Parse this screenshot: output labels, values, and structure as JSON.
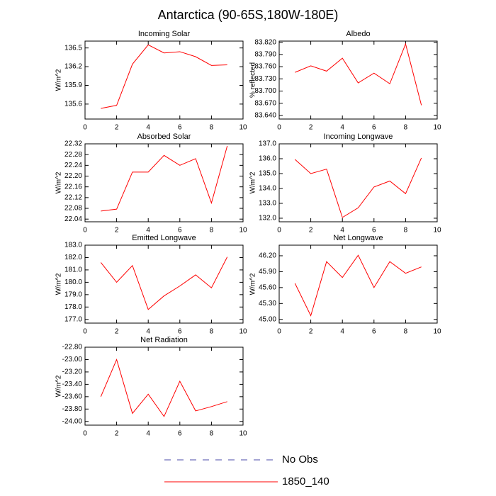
{
  "title": "Antarctica (90-65S,180W-180E)",
  "legend": [
    {
      "name": "No Obs",
      "color": "#4a4aa8",
      "dashed": true
    },
    {
      "name": "1850_140",
      "color": "#ff0000"
    }
  ],
  "chart_data": [
    {
      "type": "line",
      "title": "Incoming Solar",
      "ylabel": "W/m^2",
      "color": "#ff0000",
      "x": [
        1,
        2,
        3,
        4,
        5,
        6,
        7,
        8,
        9
      ],
      "values": [
        135.53,
        135.58,
        136.24,
        136.55,
        136.42,
        136.44,
        136.36,
        136.22,
        136.23
      ],
      "xlim": [
        0,
        10
      ],
      "xticks": [
        0,
        2,
        4,
        6,
        8,
        10
      ],
      "ylim": [
        135.36,
        136.61
      ],
      "yticks": [
        135.6,
        135.9,
        136.2,
        136.5
      ]
    },
    {
      "type": "line",
      "title": "Albedo",
      "ylabel": "% reflected",
      "color": "#ff0000",
      "x": [
        1,
        2,
        3,
        4,
        5,
        6,
        7,
        8,
        9
      ],
      "values": [
        83.746,
        83.762,
        83.749,
        83.781,
        83.72,
        83.744,
        83.718,
        83.816,
        83.665
      ],
      "xlim": [
        0,
        10
      ],
      "xticks": [
        0,
        2,
        4,
        6,
        8,
        10
      ],
      "ylim": [
        83.631,
        83.823
      ],
      "yticks": [
        {
          "value": 83.64,
          "label": "83.640"
        },
        {
          "value": 83.67,
          "label": "83.670"
        },
        {
          "value": 83.7,
          "label": "83.700"
        },
        {
          "value": 83.73,
          "label": "83.730"
        },
        {
          "value": 83.76,
          "label": "83.760"
        },
        {
          "value": 83.79,
          "label": "83.790"
        },
        {
          "value": 83.82,
          "label": "83.820"
        }
      ]
    },
    {
      "type": "line",
      "title": "Absorbed Solar",
      "ylabel": "W/m^2",
      "color": "#ff0000",
      "x": [
        1,
        2,
        3,
        4,
        5,
        6,
        7,
        8,
        9
      ],
      "values": [
        22.07,
        22.077,
        22.215,
        22.215,
        22.277,
        22.24,
        22.265,
        22.1,
        22.312
      ],
      "xlim": [
        0,
        10
      ],
      "xticks": [
        0,
        2,
        4,
        6,
        8,
        10
      ],
      "ylim": [
        22.03,
        22.32
      ],
      "yticks": [
        22.04,
        22.08,
        22.12,
        22.16,
        {
          "value": 22.2,
          "label": "22.20"
        },
        22.24,
        22.28,
        22.32
      ]
    },
    {
      "type": "line",
      "title": "Incoming Longwave",
      "ylabel": "W/m^2",
      "color": "#ff0000",
      "x": [
        1,
        2,
        3,
        4,
        5,
        6,
        7,
        8,
        9
      ],
      "values": [
        135.95,
        135.0,
        135.3,
        132.05,
        132.7,
        134.1,
        134.5,
        133.65,
        136.05
      ],
      "xlim": [
        0,
        10
      ],
      "xticks": [
        0,
        2,
        4,
        6,
        8,
        10
      ],
      "ylim": [
        131.76,
        137.0
      ],
      "yticks": [
        {
          "value": 132,
          "label": "132.0"
        },
        {
          "value": 133,
          "label": "133.0"
        },
        {
          "value": 134,
          "label": "134.0"
        },
        {
          "value": 135,
          "label": "135.0"
        },
        {
          "value": 136,
          "label": "136.0"
        },
        {
          "value": 137,
          "label": "137.0"
        }
      ]
    },
    {
      "type": "line",
      "title": "Emitted Longwave",
      "ylabel": "W/m^2",
      "color": "#ff0000",
      "x": [
        1,
        2,
        3,
        4,
        5,
        6,
        7,
        8,
        9
      ],
      "values": [
        181.6,
        180.0,
        181.35,
        177.8,
        178.9,
        179.7,
        180.6,
        179.55,
        182.05
      ],
      "xlim": [
        0,
        10
      ],
      "xticks": [
        0,
        2,
        4,
        6,
        8,
        10
      ],
      "ylim": [
        176.7,
        183.0
      ],
      "yticks": [
        {
          "value": 177,
          "label": "177.0"
        },
        {
          "value": 178,
          "label": "178.0"
        },
        {
          "value": 179,
          "label": "179.0"
        },
        {
          "value": 180,
          "label": "180.0"
        },
        {
          "value": 181,
          "label": "181.0"
        },
        {
          "value": 182,
          "label": "182.0"
        },
        {
          "value": 183,
          "label": "183.0"
        }
      ]
    },
    {
      "type": "line",
      "title": "Net Longwave",
      "ylabel": "W/m^2",
      "color": "#ff0000",
      "x": [
        1,
        2,
        3,
        4,
        5,
        6,
        7,
        8,
        9
      ],
      "values": [
        45.68,
        45.07,
        46.09,
        45.79,
        46.21,
        45.6,
        46.09,
        45.87,
        45.99
      ],
      "xlim": [
        0,
        10
      ],
      "xticks": [
        0,
        2,
        4,
        6,
        8,
        10
      ],
      "ylim": [
        44.93,
        46.4
      ],
      "yticks": [
        {
          "value": 45,
          "label": "45.00"
        },
        {
          "value": 45.3,
          "label": "45.30"
        },
        {
          "value": 45.6,
          "label": "45.60"
        },
        {
          "value": 45.9,
          "label": "45.90"
        },
        {
          "value": 46.2,
          "label": "46.20"
        }
      ]
    },
    {
      "type": "line",
      "title": "Net Radiation",
      "ylabel": "W/m^2",
      "color": "#ff0000",
      "x": [
        1,
        2,
        3,
        4,
        5,
        6,
        7,
        8,
        9
      ],
      "values": [
        -23.6,
        -23.0,
        -23.87,
        -23.56,
        -23.92,
        -23.35,
        -23.83,
        -23.76,
        -23.68
      ],
      "xlim": [
        0,
        10
      ],
      "xticks": [
        0,
        2,
        4,
        6,
        8,
        10
      ],
      "ylim": [
        -24.06,
        -22.8
      ],
      "yticks": [
        {
          "value": -24,
          "label": "-24.00"
        },
        {
          "value": -23.8,
          "label": "-23.80"
        },
        {
          "value": -23.6,
          "label": "-23.60"
        },
        {
          "value": -23.4,
          "label": "-23.40"
        },
        {
          "value": -23.2,
          "label": "-23.20"
        },
        {
          "value": -23,
          "label": "-23.00"
        },
        {
          "value": -22.8,
          "label": "-22.80"
        }
      ]
    }
  ]
}
